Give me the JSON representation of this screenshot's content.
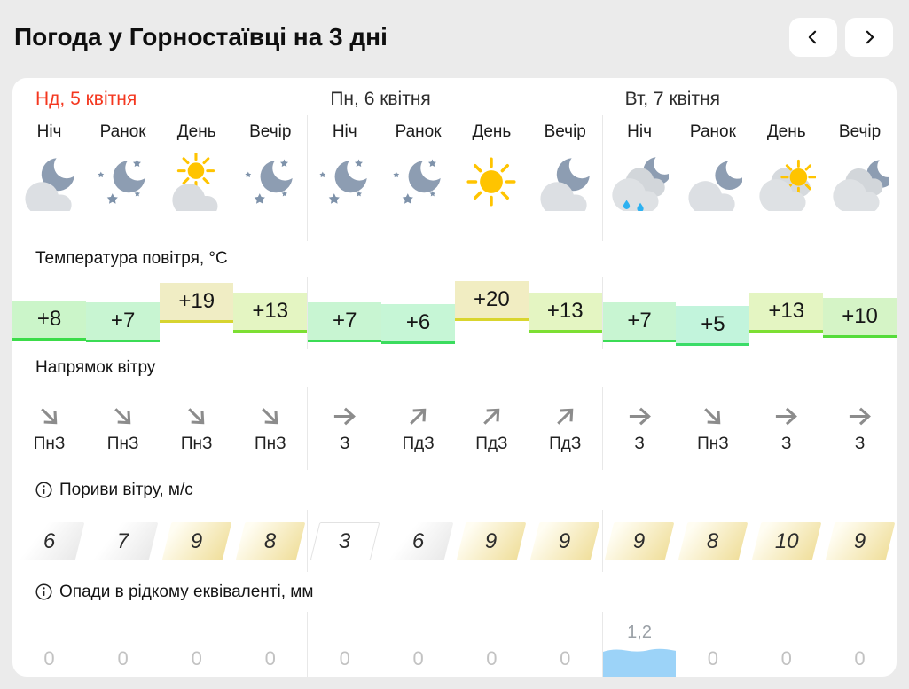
{
  "page": {
    "title": "Погода у Горностаївці на 3 дні",
    "background": "#ebebeb"
  },
  "nav": {
    "prev": "попередній день",
    "next": "наступний день"
  },
  "section_labels": {
    "temperature": "Температура повітря, °C",
    "wind_direction": "Напрямок вітру",
    "wind_gusts": "Пориви вітру, м/с",
    "precipitation": "Опади в рідкому еквіваленті, мм"
  },
  "colors": {
    "accent_red": "#f4371f",
    "sun_yellow": "#ffc400",
    "moon_slate": "#8d9db2",
    "star_slate": "#7e92aa",
    "rain_blue": "#2cb1f1",
    "precip_bar_blue": "#9cd3f8",
    "arrow_gray": "#8c8c8c"
  },
  "days": [
    {
      "name": "Нд, 5 квітня",
      "highlight": true,
      "periods": [
        {
          "label": "Ніч",
          "icon": "cloud-moon",
          "temp": "+8",
          "temp_value": 8,
          "temp_bg": "#cbf5c9",
          "temp_line": "#3bdc49",
          "wind_dir": "ПнЗ",
          "wind_arrow": "se",
          "gust": "6",
          "gust_style": "gray",
          "precip": "0",
          "precip_bar": false
        },
        {
          "label": "Ранок",
          "icon": "moon-stars",
          "temp": "+7",
          "temp_value": 7,
          "temp_bg": "#c8f5d2",
          "temp_line": "#3bdc55",
          "wind_dir": "ПнЗ",
          "wind_arrow": "se",
          "gust": "7",
          "gust_style": "gray",
          "precip": "0",
          "precip_bar": false
        },
        {
          "label": "День",
          "icon": "sun-cloud",
          "temp": "+19",
          "temp_value": 19,
          "temp_bg": "#f0edc4",
          "temp_line": "#d7d431",
          "wind_dir": "ПнЗ",
          "wind_arrow": "se",
          "gust": "9",
          "gust_style": "yellow",
          "precip": "0",
          "precip_bar": false
        },
        {
          "label": "Вечір",
          "icon": "moon-stars",
          "temp": "+13",
          "temp_value": 13,
          "temp_bg": "#e4f5c2",
          "temp_line": "#7ddf33",
          "wind_dir": "ПнЗ",
          "wind_arrow": "se",
          "gust": "8",
          "gust_style": "yellow",
          "precip": "0",
          "precip_bar": false
        }
      ]
    },
    {
      "name": "Пн, 6 квітня",
      "highlight": false,
      "periods": [
        {
          "label": "Ніч",
          "icon": "moon-stars",
          "temp": "+7",
          "temp_value": 7,
          "temp_bg": "#c8f5d2",
          "temp_line": "#3bdc55",
          "wind_dir": "З",
          "wind_arrow": "e",
          "gust": "3",
          "gust_style": "white",
          "precip": "0",
          "precip_bar": false
        },
        {
          "label": "Ранок",
          "icon": "moon-stars",
          "temp": "+6",
          "temp_value": 6,
          "temp_bg": "#c6f6d6",
          "temp_line": "#3bdc5e",
          "wind_dir": "ПдЗ",
          "wind_arrow": "ne",
          "gust": "6",
          "gust_style": "gray",
          "precip": "0",
          "precip_bar": false
        },
        {
          "label": "День",
          "icon": "sun",
          "temp": "+20",
          "temp_value": 20,
          "temp_bg": "#f1edc2",
          "temp_line": "#d9d52e",
          "wind_dir": "ПдЗ",
          "wind_arrow": "ne",
          "gust": "9",
          "gust_style": "yellow",
          "precip": "0",
          "precip_bar": false
        },
        {
          "label": "Вечір",
          "icon": "cloud-moon",
          "temp": "+13",
          "temp_value": 13,
          "temp_bg": "#e4f5c2",
          "temp_line": "#7ddf33",
          "wind_dir": "ПдЗ",
          "wind_arrow": "ne",
          "gust": "9",
          "gust_style": "yellow",
          "precip": "0",
          "precip_bar": false
        }
      ]
    },
    {
      "name": "Вт, 7 квітня",
      "highlight": false,
      "periods": [
        {
          "label": "Ніч",
          "icon": "clouds-moon-rain",
          "temp": "+7",
          "temp_value": 7,
          "temp_bg": "#c8f5d2",
          "temp_line": "#3bdc55",
          "wind_dir": "З",
          "wind_arrow": "e",
          "gust": "9",
          "gust_style": "yellow",
          "precip": "1,2",
          "precip_bar": true
        },
        {
          "label": "Ранок",
          "icon": "cloud-moon-2",
          "temp": "+5",
          "temp_value": 5,
          "temp_bg": "#c2f4dc",
          "temp_line": "#3bdc68",
          "wind_dir": "ПнЗ",
          "wind_arrow": "se",
          "gust": "8",
          "gust_style": "yellow",
          "precip": "0",
          "precip_bar": false
        },
        {
          "label": "День",
          "icon": "clouds-sun",
          "temp": "+13",
          "temp_value": 13,
          "temp_bg": "#e4f5c2",
          "temp_line": "#7ddf33",
          "wind_dir": "З",
          "wind_arrow": "e",
          "gust": "10",
          "gust_style": "yellow",
          "precip": "0",
          "precip_bar": false
        },
        {
          "label": "Вечір",
          "icon": "clouds-moon",
          "temp": "+10",
          "temp_value": 10,
          "temp_bg": "#d5f4c6",
          "temp_line": "#55dc3a",
          "wind_dir": "З",
          "wind_arrow": "e",
          "gust": "9",
          "gust_style": "yellow",
          "precip": "0",
          "precip_bar": false
        }
      ]
    }
  ]
}
